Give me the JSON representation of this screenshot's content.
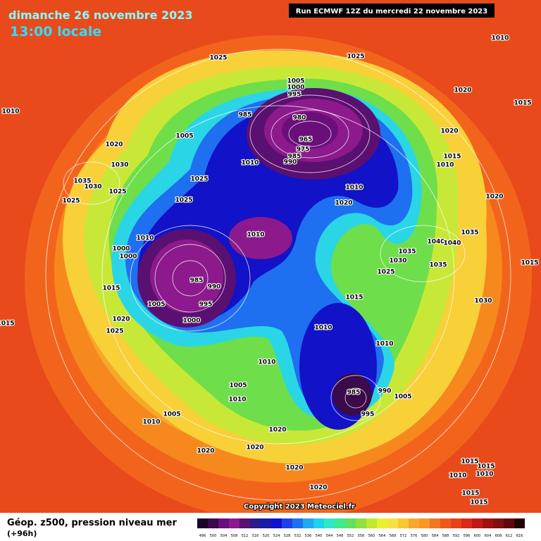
{
  "header": {
    "date": "dimanche 26 novembre 2023",
    "time": "13:00 locale",
    "run": "Run ECMWF 12Z du mercredi 22 novembre 2023"
  },
  "copyright": "Copyright 2023 Meteociel.fr",
  "legend": {
    "title": "Géop. z500, pression niveau mer",
    "lead": "(+96h)",
    "labels": [
      496,
      500,
      504,
      508,
      512,
      516,
      520,
      524,
      528,
      532,
      536,
      540,
      544,
      548,
      552,
      556,
      560,
      564,
      568,
      572,
      576,
      580,
      584,
      588,
      592,
      596,
      600,
      604,
      608,
      612,
      616
    ],
    "colors": [
      "#1a0428",
      "#3a0a4a",
      "#6a0e7a",
      "#8c1a8c",
      "#5a1070",
      "#2a1a8a",
      "#1a1aa8",
      "#1010d0",
      "#1e40e8",
      "#1e70f0",
      "#20a8f0",
      "#20d0f0",
      "#30e8c8",
      "#40e890",
      "#60e060",
      "#90e040",
      "#c0e830",
      "#e8f030",
      "#f8e040",
      "#f8c830",
      "#f8a828",
      "#f89820",
      "#f07820",
      "#f05818",
      "#e84018",
      "#d82818",
      "#c01818",
      "#a01010",
      "#801010",
      "#600808",
      "#200404"
    ]
  },
  "isobar_labels": [
    1010,
    1025,
    1025,
    1010,
    1005,
    1000,
    995,
    1020,
    1015,
    985,
    980,
    1005,
    1020,
    965,
    1020,
    975,
    985,
    990,
    1015,
    1010,
    1010,
    1030,
    1035,
    1030,
    1025,
    1025,
    1010,
    1025,
    1025,
    1020,
    1020,
    1010,
    1010,
    1035,
    1040,
    1040,
    1000,
    1000,
    1035,
    1030,
    1035,
    1015,
    1025,
    985,
    990,
    1015,
    1015,
    995,
    1005,
    1030,
    1020,
    1000,
    1015,
    1010,
    1025,
    1010,
    1010,
    1005,
    990,
    1010,
    985,
    995,
    1005,
    1005,
    1010,
    1020,
    1020,
    1020,
    1020,
    1010,
    1015,
    1015,
    1020,
    1015,
    1010,
    1015
  ]
}
